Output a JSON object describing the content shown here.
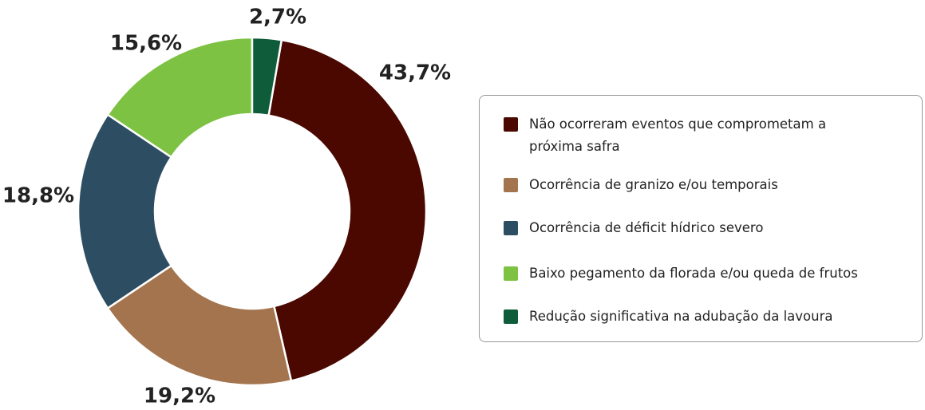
{
  "chart_data": {
    "type": "donut",
    "categories": [
      "Não ocorreram eventos que comprometam a próxima safra",
      "Ocorrência de granizo e/ou temporais",
      "Ocorrência de déficit hídrico severo",
      "Baixo pegamento da florada e/ou queda de frutos",
      "Redução significativa na adubação da lavoura"
    ],
    "values": [
      43.7,
      19.2,
      18.8,
      15.6,
      2.7
    ],
    "value_labels": [
      "43,7%",
      "19,2%",
      "18,8%",
      "15,6%",
      "2,7%"
    ],
    "colors": [
      "#4a0800",
      "#a3744d",
      "#2d4e62",
      "#7dc242",
      "#0e5c3a"
    ],
    "legend": "right"
  }
}
